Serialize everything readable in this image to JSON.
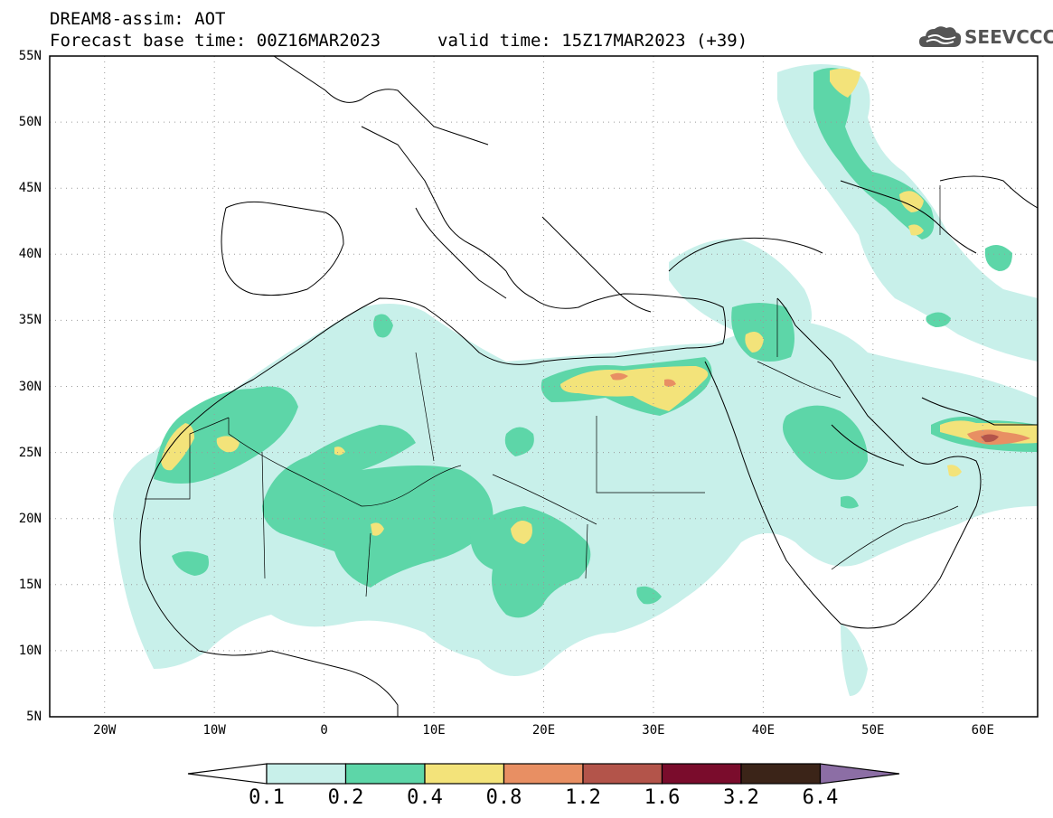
{
  "header": {
    "title_line1": "DREAM8-assim: AOT",
    "title_line2": "Forecast base time: 00Z16MAR2023",
    "valid_time": "valid time: 15Z17MAR2023 (+39)",
    "logo_text": "SEEVCCC",
    "logo_icon": "cloud-icon"
  },
  "map": {
    "lon_labels": [
      "20W",
      "10W",
      "0",
      "10E",
      "20E",
      "30E",
      "40E",
      "50E",
      "60E"
    ],
    "lat_labels": [
      "55N",
      "50N",
      "45N",
      "40N",
      "35N",
      "30N",
      "25N",
      "20N",
      "15N",
      "10N",
      "5N"
    ],
    "lon_range": [
      -25,
      65
    ],
    "lat_range": [
      5,
      55
    ],
    "grid": "dotted"
  },
  "colorbar": {
    "labels": [
      "0.1",
      "0.2",
      "0.4",
      "0.8",
      "1.2",
      "1.6",
      "3.2",
      "6.4"
    ],
    "colors": [
      "#c8f0ea",
      "#5dd6a8",
      "#f3e37a",
      "#e88f63",
      "#b3544a",
      "#7a0c2c",
      "#3b2418"
    ],
    "lower_extend_color": "#ffffff",
    "upper_extend_color": "#8c6ea5"
  }
}
